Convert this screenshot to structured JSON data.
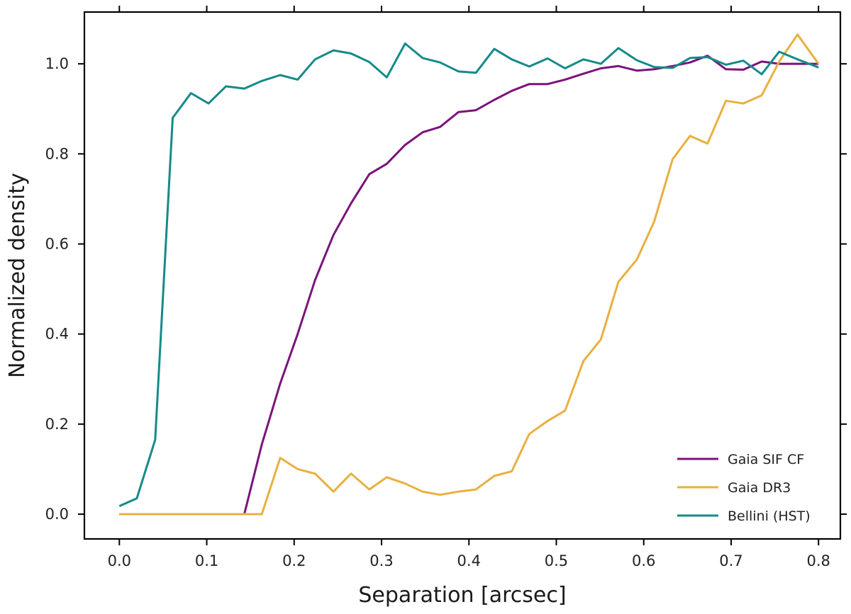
{
  "chart_data": {
    "type": "line",
    "xlabel": "Separation [arcsec]",
    "ylabel": "Normalized density",
    "xlim": [
      -0.04,
      0.825
    ],
    "ylim": [
      -0.055,
      1.115
    ],
    "xticks": [
      0.0,
      0.1,
      0.2,
      0.3,
      0.4,
      0.5,
      0.6,
      0.7,
      0.8
    ],
    "xtick_labels": [
      "0.0",
      "0.1",
      "0.2",
      "0.3",
      "0.4",
      "0.5",
      "0.6",
      "0.7",
      "0.8"
    ],
    "yticks": [
      0.0,
      0.2,
      0.4,
      0.6,
      0.8,
      1.0
    ],
    "ytick_labels": [
      "0.0",
      "0.2",
      "0.4",
      "0.6",
      "0.8",
      "1.0"
    ],
    "grid": false,
    "legend_position": "bottom-right",
    "series": [
      {
        "name": "Gaia SIF CF",
        "color": "#7b137b",
        "x": [
          0.0,
          0.143,
          0.163,
          0.184,
          0.204,
          0.224,
          0.245,
          0.265,
          0.286,
          0.306,
          0.327,
          0.347,
          0.367,
          0.388,
          0.408,
          0.429,
          0.449,
          0.469,
          0.49,
          0.51,
          0.531,
          0.551,
          0.571,
          0.592,
          0.612,
          0.633,
          0.653,
          0.673,
          0.694,
          0.714,
          0.735,
          0.755,
          0.776,
          0.8
        ],
        "y": [
          0.0,
          0.0,
          0.155,
          0.29,
          0.4,
          0.52,
          0.62,
          0.69,
          0.755,
          0.778,
          0.82,
          0.848,
          0.86,
          0.893,
          0.897,
          0.92,
          0.94,
          0.955,
          0.955,
          0.965,
          0.978,
          0.99,
          0.995,
          0.985,
          0.988,
          0.995,
          1.003,
          1.018,
          0.988,
          0.987,
          1.005,
          1.0,
          1.0,
          1.0
        ]
      },
      {
        "name": "Gaia DR3",
        "color": "#e9b03f",
        "x": [
          0.0,
          0.163,
          0.184,
          0.204,
          0.224,
          0.245,
          0.265,
          0.286,
          0.306,
          0.327,
          0.347,
          0.367,
          0.388,
          0.408,
          0.429,
          0.449,
          0.469,
          0.49,
          0.51,
          0.531,
          0.551,
          0.571,
          0.592,
          0.612,
          0.633,
          0.653,
          0.673,
          0.694,
          0.714,
          0.735,
          0.755,
          0.776,
          0.8
        ],
        "y": [
          0.0,
          0.0,
          0.125,
          0.1,
          0.09,
          0.05,
          0.09,
          0.055,
          0.082,
          0.068,
          0.05,
          0.043,
          0.05,
          0.055,
          0.085,
          0.095,
          0.178,
          0.207,
          0.23,
          0.34,
          0.388,
          0.516,
          0.565,
          0.65,
          0.788,
          0.84,
          0.823,
          0.918,
          0.912,
          0.93,
          1.005,
          1.065,
          1.0
        ]
      },
      {
        "name": "Bellini (HST)",
        "color": "#158a8a",
        "x": [
          0.0,
          0.02,
          0.041,
          0.061,
          0.082,
          0.102,
          0.122,
          0.143,
          0.163,
          0.184,
          0.204,
          0.224,
          0.245,
          0.265,
          0.286,
          0.306,
          0.327,
          0.347,
          0.367,
          0.388,
          0.408,
          0.429,
          0.449,
          0.469,
          0.49,
          0.51,
          0.531,
          0.551,
          0.571,
          0.592,
          0.612,
          0.633,
          0.653,
          0.673,
          0.694,
          0.714,
          0.735,
          0.755,
          0.776,
          0.8
        ],
        "y": [
          0.018,
          0.035,
          0.165,
          0.88,
          0.935,
          0.912,
          0.95,
          0.945,
          0.962,
          0.975,
          0.965,
          1.01,
          1.03,
          1.023,
          1.004,
          0.97,
          1.045,
          1.013,
          1.003,
          0.983,
          0.98,
          1.033,
          1.01,
          0.994,
          1.012,
          0.99,
          1.01,
          1.0,
          1.035,
          1.008,
          0.993,
          0.991,
          1.013,
          1.015,
          0.998,
          1.007,
          0.977,
          1.027,
          1.01,
          0.992
        ]
      }
    ]
  }
}
